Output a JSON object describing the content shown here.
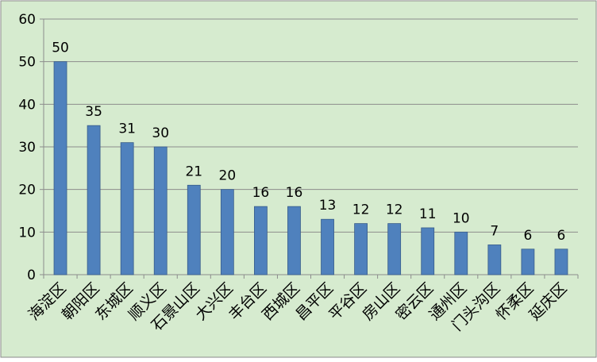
{
  "chart_data": {
    "type": "bar",
    "title": "",
    "xlabel": "",
    "ylabel": "",
    "categories": [
      "海淀区",
      "朝阳区",
      "东城区",
      "顺义区",
      "石景山区",
      "大兴区",
      "丰台区",
      "西城区",
      "昌平区",
      "平谷区",
      "房山区",
      "密云区",
      "通州区",
      "门头沟区",
      "怀柔区",
      "延庆区"
    ],
    "values": [
      50,
      35,
      31,
      30,
      21,
      20,
      16,
      16,
      13,
      12,
      12,
      11,
      10,
      7,
      6,
      6
    ],
    "ylim": [
      0,
      60
    ],
    "yticks": [
      0,
      10,
      20,
      30,
      40,
      50,
      60
    ],
    "grid": true,
    "legend": "none",
    "colors": {
      "background": "#d6ebcf",
      "bar": "#4f81bd",
      "bar_edge": "#385d8a",
      "grid": "#8c8c8c",
      "text": "#000000"
    }
  }
}
